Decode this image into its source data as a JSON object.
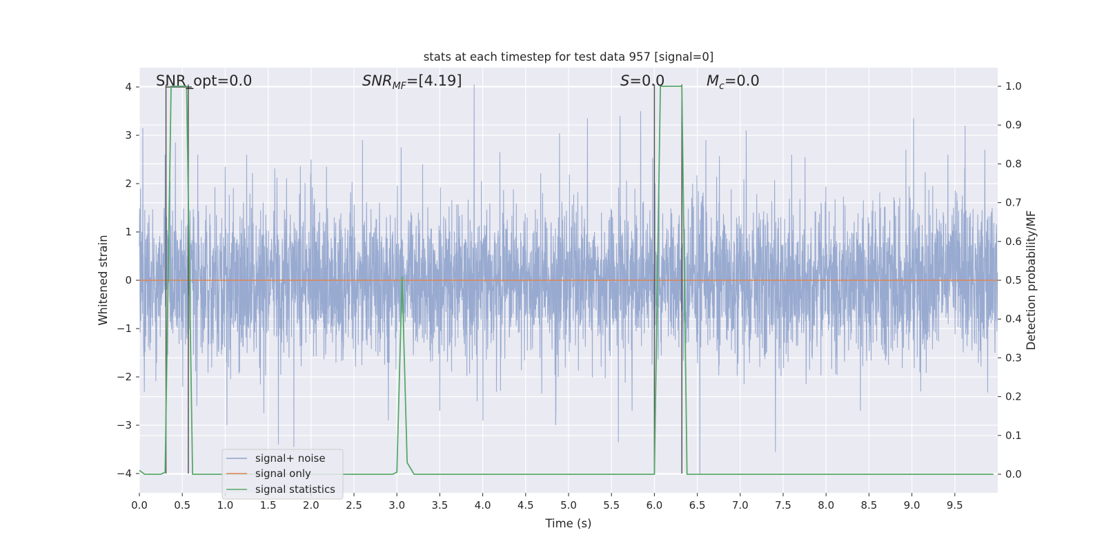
{
  "chart_data": {
    "type": "line",
    "title": "stats at each timestep for test data 957 [signal=0]",
    "xlabel": "Time (s)",
    "ylabel": "Whitened strain",
    "y2label": "Detection probability/MF",
    "xlim": [
      0,
      10
    ],
    "ylim": [
      -4.4,
      4.4
    ],
    "y2lim": [
      -0.048,
      1.048
    ],
    "x_ticks": [
      0.0,
      0.5,
      1.0,
      1.5,
      2.0,
      2.5,
      3.0,
      3.5,
      4.0,
      4.5,
      5.0,
      5.5,
      6.0,
      6.5,
      7.0,
      7.5,
      8.0,
      8.5,
      9.0,
      9.5
    ],
    "y_ticks": [
      -4,
      -3,
      -2,
      -1,
      0,
      1,
      2,
      3,
      4
    ],
    "y2_ticks": [
      0.0,
      0.1,
      0.2,
      0.3,
      0.4,
      0.5,
      0.6,
      0.7,
      0.8,
      0.9,
      1.0
    ],
    "grid": true,
    "legend_placement": "lower-left",
    "legend": [
      "signal+ noise",
      "signal only",
      "signal statistics"
    ],
    "annotations": [
      {
        "kind": "plain",
        "text": "SNR_opt=0.0"
      },
      {
        "kind": "sub",
        "base": "SNR",
        "sub": "MF",
        "rest": "=[4.19]"
      },
      {
        "kind": "plain-italic",
        "base": "S",
        "rest": "=0.0"
      },
      {
        "kind": "sub",
        "base": "M",
        "sub": "c",
        "rest": "=0.0"
      }
    ],
    "vertical_markers": [
      0.31,
      0.57,
      6.0,
      6.32
    ],
    "noise_series": {
      "name": "signal+ noise",
      "color": "#8fa3cc",
      "sample_rate": 400,
      "sigma": 0.8,
      "peaks": [
        {
          "x": 0.04,
          "y": 3.15
        },
        {
          "x": 0.3,
          "y": 2.6
        },
        {
          "x": 0.42,
          "y": 2.85
        },
        {
          "x": 0.68,
          "y": 2.6
        },
        {
          "x": 0.67,
          "y": -2.6
        },
        {
          "x": 1.0,
          "y": 2.35
        },
        {
          "x": 1.02,
          "y": -3.0
        },
        {
          "x": 1.25,
          "y": 2.6
        },
        {
          "x": 1.45,
          "y": -2.75
        },
        {
          "x": 1.62,
          "y": -3.4
        },
        {
          "x": 1.8,
          "y": -3.45
        },
        {
          "x": 2.0,
          "y": 2.5
        },
        {
          "x": 2.18,
          "y": 2.35
        },
        {
          "x": 2.6,
          "y": 2.9
        },
        {
          "x": 2.9,
          "y": -2.9
        },
        {
          "x": 3.05,
          "y": 2.75
        },
        {
          "x": 3.3,
          "y": 2.4
        },
        {
          "x": 3.5,
          "y": -2.7
        },
        {
          "x": 3.9,
          "y": 4.05
        },
        {
          "x": 4.2,
          "y": 2.65
        },
        {
          "x": 4.85,
          "y": -3.0
        },
        {
          "x": 5.22,
          "y": 3.35
        },
        {
          "x": 5.6,
          "y": 3.4
        },
        {
          "x": 5.58,
          "y": -3.35
        },
        {
          "x": 5.84,
          "y": 3.5
        },
        {
          "x": 6.6,
          "y": 2.9
        },
        {
          "x": 6.53,
          "y": -4.0
        },
        {
          "x": 7.07,
          "y": 3.1
        },
        {
          "x": 7.41,
          "y": -3.55
        },
        {
          "x": 7.6,
          "y": 2.6
        },
        {
          "x": 8.4,
          "y": -2.7
        },
        {
          "x": 8.93,
          "y": 2.7
        },
        {
          "x": 9.02,
          "y": 3.35
        },
        {
          "x": 9.42,
          "y": 2.6
        },
        {
          "x": 9.62,
          "y": 3.2
        },
        {
          "x": 9.85,
          "y": 2.7
        }
      ]
    },
    "series": [
      {
        "name": "signal only",
        "color": "#dd8452",
        "x": [
          0,
          10
        ],
        "y": [
          0,
          0
        ]
      },
      {
        "name": "signal statistics",
        "axis": "right",
        "color": "#55a868",
        "x": [
          0.0,
          0.06,
          0.25,
          0.3,
          0.37,
          0.55,
          0.62,
          0.7,
          2.95,
          3.0,
          3.06,
          3.12,
          3.2,
          6.0,
          6.07,
          6.32,
          6.38,
          6.45,
          9.95
        ],
        "y": [
          0.01,
          0.0,
          0.0,
          0.005,
          1.0,
          1.0,
          0.0,
          0.0,
          0.0,
          0.005,
          0.51,
          0.03,
          0.0,
          0.0,
          1.0,
          1.0,
          0.0,
          0.0,
          0.0
        ]
      }
    ]
  }
}
